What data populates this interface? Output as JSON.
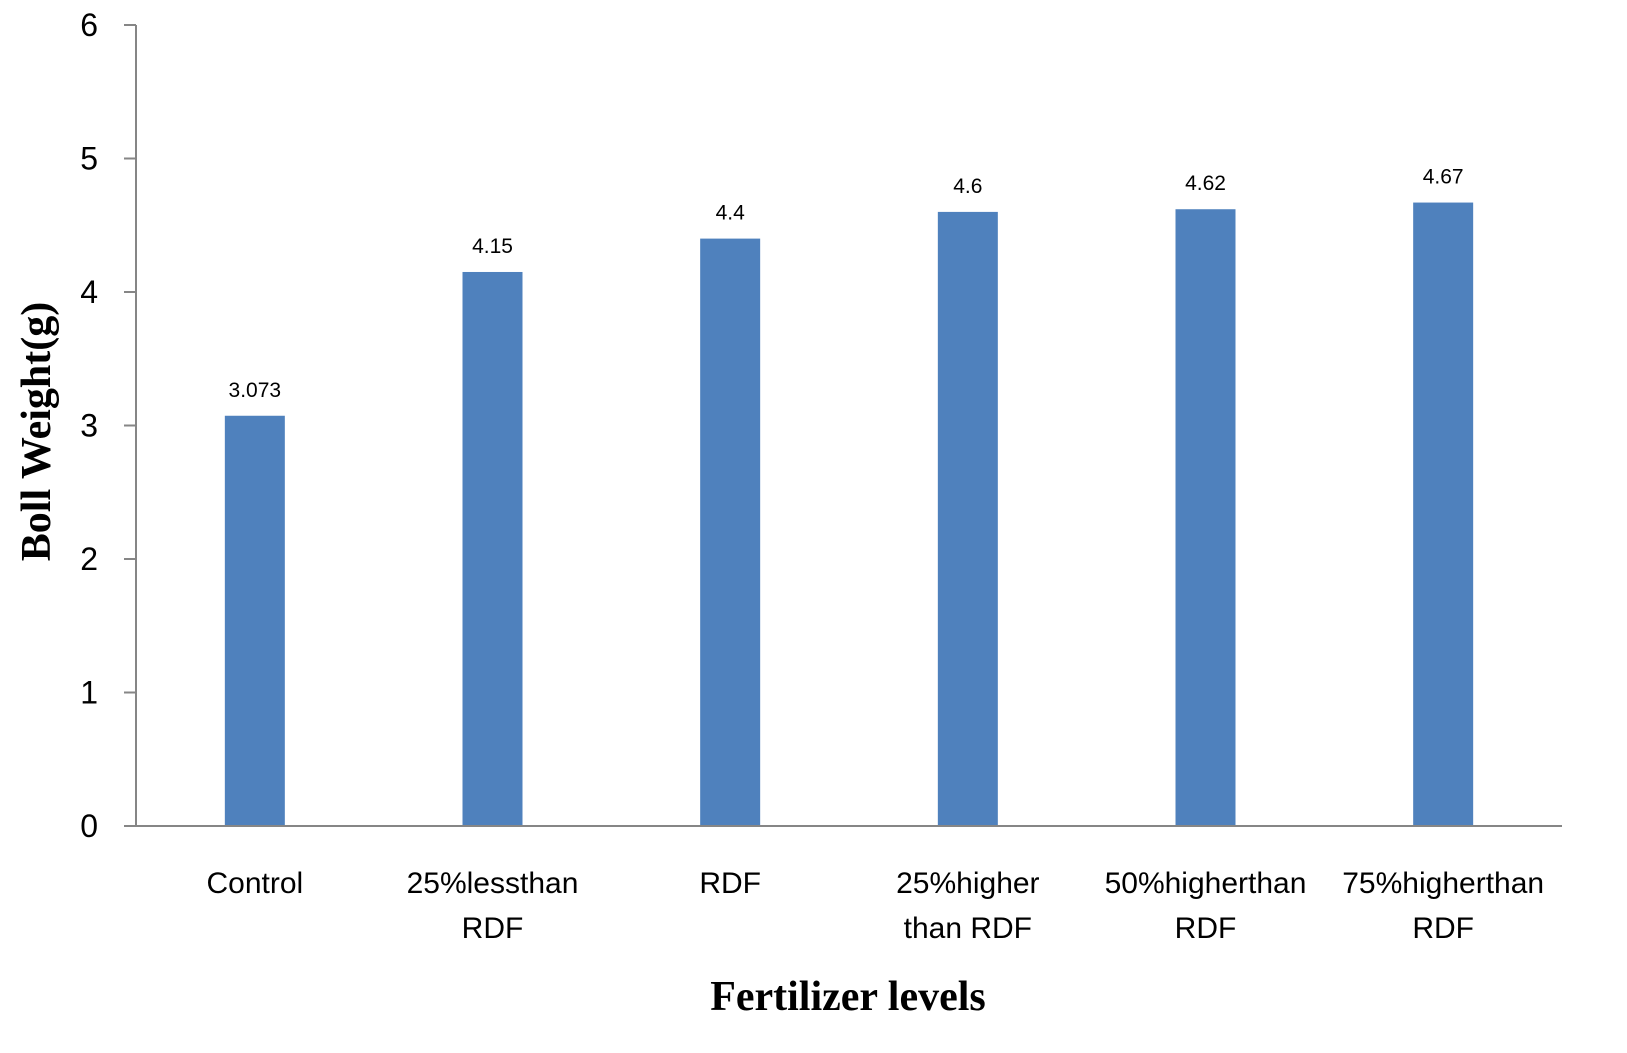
{
  "chart_data": {
    "type": "bar",
    "categories": [
      [
        "Control"
      ],
      [
        "25%lessthan",
        "RDF"
      ],
      [
        "RDF"
      ],
      [
        "25%higher",
        "than RDF"
      ],
      [
        "50%higherthan",
        "RDF"
      ],
      [
        "75%higherthan",
        "RDF"
      ]
    ],
    "values": [
      3.073,
      4.15,
      4.4,
      4.6,
      4.62,
      4.67
    ],
    "data_labels": [
      "3.073",
      "4.15",
      "4.4",
      "4.6",
      "4.62",
      "4.67"
    ],
    "title": "",
    "xlabel": "Fertilizer levels",
    "ylabel": "Boll Weight(g)",
    "ylim": [
      0,
      6
    ],
    "yticks": [
      0,
      1,
      2,
      3,
      4,
      5,
      6
    ],
    "grid": false,
    "legend": "none",
    "bar_color": "#4f81bd",
    "axis_color": "#868686"
  }
}
